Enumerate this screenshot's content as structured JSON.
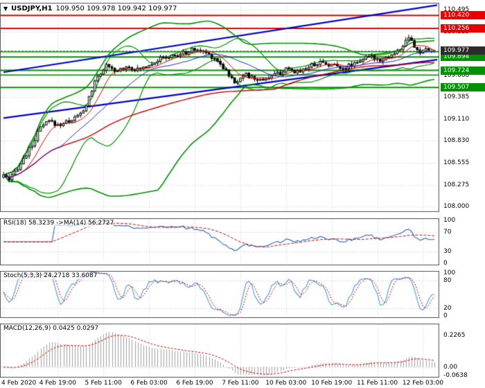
{
  "window_title": {
    "symbol": "USDJPY,H1",
    "ohlc": "109.950 109.978 109.942 109.977"
  },
  "chart_data": {
    "type": "candlestick",
    "symbol": "USDJPY",
    "timeframe": "H1",
    "open": "109.950",
    "high": "109.978",
    "low": "109.942",
    "close": "109.977",
    "price_axis_range": [
      107.93,
      110.58
    ],
    "price_axis_ticks": [
      "110.495",
      "110.215",
      "109.940",
      "109.660",
      "109.385",
      "109.110",
      "108.830",
      "108.555",
      "108.275",
      "108.000"
    ],
    "time_labels": [
      {
        "text": "4 Feb 2020",
        "hour": 0
      },
      {
        "text": "4 Feb 19:00",
        "hour": 19
      },
      {
        "text": "5 Feb 11:00",
        "hour": 35
      },
      {
        "text": "6 Feb 03:00",
        "hour": 51
      },
      {
        "text": "6 Feb 19:00",
        "hour": 67
      },
      {
        "text": "7 Feb 11:00",
        "hour": 83
      },
      {
        "text": "10 Feb 03:00",
        "hour": 99
      },
      {
        "text": "10 Feb 19:00",
        "hour": 115
      },
      {
        "text": "11 Feb 11:00",
        "hour": 131
      },
      {
        "text": "12 Feb 03:00",
        "hour": 147
      }
    ],
    "candle_count": 152,
    "price_path": [
      [
        0,
        108.4
      ],
      [
        2,
        108.32
      ],
      [
        4,
        108.44
      ],
      [
        7,
        108.6
      ],
      [
        10,
        108.78
      ],
      [
        13,
        109.0
      ],
      [
        16,
        109.08
      ],
      [
        19,
        109.03
      ],
      [
        22,
        109.07
      ],
      [
        25,
        109.12
      ],
      [
        28,
        109.2
      ],
      [
        31,
        109.48
      ],
      [
        33,
        109.65
      ],
      [
        36,
        109.78
      ],
      [
        39,
        109.7
      ],
      [
        43,
        109.78
      ],
      [
        47,
        109.73
      ],
      [
        51,
        109.8
      ],
      [
        55,
        109.87
      ],
      [
        59,
        109.9
      ],
      [
        63,
        109.94
      ],
      [
        67,
        109.99
      ],
      [
        71,
        109.95
      ],
      [
        75,
        109.85
      ],
      [
        78,
        109.72
      ],
      [
        81,
        109.56
      ],
      [
        84,
        109.68
      ],
      [
        87,
        109.63
      ],
      [
        90,
        109.6
      ],
      [
        93,
        109.64
      ],
      [
        96,
        109.68
      ],
      [
        99,
        109.73
      ],
      [
        102,
        109.7
      ],
      [
        105,
        109.74
      ],
      [
        108,
        109.79
      ],
      [
        111,
        109.83
      ],
      [
        114,
        109.8
      ],
      [
        117,
        109.78
      ],
      [
        120,
        109.76
      ],
      [
        123,
        109.82
      ],
      [
        126,
        109.87
      ],
      [
        129,
        109.89
      ],
      [
        132,
        109.86
      ],
      [
        135,
        109.9
      ],
      [
        138,
        109.95
      ],
      [
        140,
        110.04
      ],
      [
        142,
        110.14
      ],
      [
        144,
        110.01
      ],
      [
        146,
        109.95
      ],
      [
        148,
        109.98
      ],
      [
        151,
        109.977
      ]
    ],
    "horizontal_levels": [
      {
        "price": 110.42,
        "color": "#E60000",
        "badge": "110.420",
        "badge_bg": "#E60000"
      },
      {
        "price": 110.256,
        "color": "#E60000",
        "badge": "110.256",
        "badge_bg": "#E60000"
      },
      {
        "price": 109.96,
        "color": "#009100",
        "badge": null,
        "badge_bg": null
      },
      {
        "price": 109.894,
        "color": "#009100",
        "badge": "109.894",
        "badge_bg": "#009100"
      },
      {
        "price": 109.724,
        "color": "#009100",
        "badge": "109.724",
        "badge_bg": "#009100"
      },
      {
        "price": 109.665,
        "color": "#009100",
        "badge": null,
        "badge_bg": null
      },
      {
        "price": 109.507,
        "color": "#009100",
        "badge": "109.507",
        "badge_bg": "#009100"
      }
    ],
    "current_price": {
      "value": 109.977,
      "badge": "109.977",
      "badge_bg": "#2b2b2b"
    },
    "trend_lines": [
      {
        "hour1": 0,
        "price1": 109.7,
        "hour2": 152,
        "price2": 110.55,
        "color": "#0000D0"
      },
      {
        "hour1": 0,
        "price1": 109.12,
        "hour2": 152,
        "price2": 109.86,
        "color": "#0000D0"
      }
    ],
    "indicators": [
      {
        "id": "rsi",
        "label": "RSI(18) 58.3239  ->MA(14) 56.2727",
        "range": [
          0,
          100
        ],
        "ticks": [
          {
            "v": 100,
            "t": "100"
          },
          {
            "v": 70,
            "t": "70"
          },
          {
            "v": 30,
            "t": "30"
          },
          {
            "v": 0,
            "t": "0"
          }
        ],
        "inner_lines": [
          70,
          30
        ],
        "last_value": 58.3239,
        "last_signal": 56.2727
      },
      {
        "id": "stoch",
        "label": "Stoch(5,3,3) 24.2718 33.6087",
        "range": [
          0,
          100
        ],
        "ticks": [
          {
            "v": 100,
            "t": "100"
          },
          {
            "v": 80,
            "t": "80"
          },
          {
            "v": 20,
            "t": "20"
          },
          {
            "v": 0,
            "t": "0"
          }
        ],
        "inner_lines": [
          80,
          20
        ],
        "last_value": 24.2718,
        "last_signal": 33.6087
      },
      {
        "id": "macd",
        "label": "MACD(12,26,9) 0.0425 0.0297",
        "range": [
          -0.075,
          0.31
        ],
        "ticks": [
          {
            "v": 0.2265,
            "t": "0.2265"
          },
          {
            "v": 0,
            "t": "0.00"
          },
          {
            "v": -0.0638,
            "t": "-0.0638"
          }
        ],
        "inner_lines": [
          0
        ],
        "last_value": 0.0425,
        "last_signal": 0.0297
      }
    ],
    "colors": {
      "candle_up": "#FFFFFF",
      "candle_down": "#000000",
      "candle_border": "#000000",
      "bollinger": "#009000",
      "ma_fast": "#E00000",
      "ma_slow": "#2020D0",
      "ma_long": "#D00000",
      "rsi_line": "#3C6EC0",
      "stoch_line": "#58A0D8",
      "signal_line": "#D00000",
      "macd_histogram": "#A0A0A0",
      "grid": "#D4D4D4",
      "panel_border": "#555555"
    }
  }
}
